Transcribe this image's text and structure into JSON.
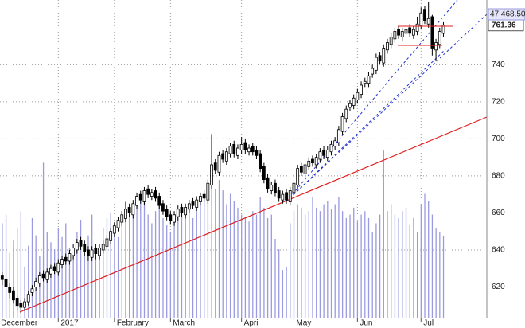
{
  "chart_data": {
    "type": "candlestick",
    "open": [
      626,
      624,
      620,
      618,
      614,
      611,
      609,
      612,
      617,
      620,
      622,
      627,
      624,
      627,
      631,
      628,
      632,
      636,
      634,
      637,
      640,
      645,
      643,
      640,
      636,
      641,
      637,
      640,
      642,
      645,
      649,
      652,
      655,
      657,
      663,
      659,
      664,
      670,
      666,
      673,
      669,
      672,
      669,
      665,
      662,
      659,
      655,
      658,
      663,
      659,
      662,
      666,
      663,
      666,
      670,
      667,
      675,
      687,
      682,
      692,
      688,
      692,
      697,
      691,
      694,
      698,
      693,
      696,
      694,
      692,
      685,
      679,
      672,
      676,
      672,
      667,
      671,
      666,
      671,
      675,
      685,
      681,
      685,
      689,
      686,
      689,
      694,
      690,
      693,
      696,
      698,
      704,
      711,
      717,
      718,
      721,
      724,
      730,
      730,
      735,
      737,
      745,
      741,
      748,
      751,
      754,
      759,
      755,
      757,
      760,
      756,
      758,
      761,
      770,
      762,
      766,
      748,
      751,
      757
    ],
    "high": [
      628,
      626,
      622,
      620,
      616,
      613,
      614,
      618,
      621,
      625,
      628,
      629,
      630,
      632,
      633,
      635,
      637,
      638,
      640,
      643,
      646,
      647,
      645,
      642,
      642,
      643,
      643,
      645,
      648,
      652,
      655,
      658,
      661,
      666,
      665,
      667,
      671,
      672,
      674,
      675,
      673,
      674,
      671,
      667,
      664,
      661,
      661,
      664,
      665,
      665,
      667,
      668,
      669,
      671,
      672,
      678,
      702,
      689,
      693,
      694,
      695,
      698,
      699,
      697,
      701,
      700,
      697,
      698,
      696,
      694,
      687,
      681,
      677,
      678,
      674,
      672,
      673,
      674,
      678,
      686,
      687,
      688,
      690,
      691,
      692,
      695,
      696,
      696,
      699,
      701,
      707,
      714,
      718,
      721,
      724,
      727,
      731,
      733,
      736,
      740,
      746,
      747,
      751,
      754,
      757,
      760,
      761,
      760,
      762,
      762,
      761,
      766,
      771,
      772,
      774,
      767,
      754,
      760,
      763
    ],
    "low": [
      621,
      617,
      614,
      611,
      607,
      606,
      607,
      610,
      615,
      618,
      620,
      623,
      622,
      625,
      627,
      626,
      630,
      632,
      632,
      635,
      638,
      640,
      637,
      634,
      634,
      635,
      635,
      638,
      640,
      643,
      647,
      650,
      653,
      655,
      658,
      657,
      662,
      665,
      664,
      668,
      667,
      666,
      662,
      659,
      656,
      654,
      653,
      656,
      658,
      657,
      660,
      662,
      661,
      664,
      666,
      665,
      673,
      681,
      680,
      687,
      686,
      690,
      690,
      689,
      692,
      692,
      691,
      691,
      689,
      682,
      676,
      671,
      670,
      669,
      666,
      665,
      665,
      664,
      669,
      673,
      680,
      679,
      683,
      685,
      684,
      687,
      689,
      688,
      691,
      694,
      696,
      702,
      709,
      715,
      716,
      719,
      722,
      728,
      728,
      733,
      735,
      740,
      739,
      746,
      749,
      752,
      754,
      753,
      755,
      755,
      754,
      756,
      759,
      762,
      760,
      745,
      742,
      749,
      755
    ],
    "close": [
      624,
      620,
      617,
      613,
      610,
      609,
      612,
      616,
      619,
      623,
      626,
      625,
      628,
      630,
      629,
      633,
      635,
      634,
      638,
      641,
      644,
      642,
      639,
      637,
      640,
      638,
      641,
      643,
      646,
      650,
      653,
      656,
      659,
      662,
      660,
      665,
      669,
      667,
      672,
      670,
      671,
      668,
      664,
      661,
      658,
      656,
      659,
      662,
      660,
      663,
      665,
      664,
      667,
      669,
      668,
      676,
      686,
      683,
      691,
      689,
      693,
      696,
      692,
      695,
      697,
      694,
      695,
      693,
      691,
      684,
      678,
      673,
      675,
      671,
      668,
      670,
      667,
      672,
      676,
      684,
      682,
      686,
      688,
      687,
      690,
      693,
      691,
      694,
      697,
      699,
      705,
      712,
      716,
      719,
      722,
      725,
      729,
      731,
      734,
      738,
      744,
      742,
      749,
      752,
      755,
      758,
      756,
      758,
      759,
      757,
      759,
      762,
      768,
      764,
      765,
      749,
      752,
      758,
      761.36
    ],
    "volume": {
      "color": "#9a9ae0",
      "axis": "y2",
      "values": [
        55000,
        60000,
        38000,
        45000,
        52000,
        62000,
        30000,
        42000,
        58000,
        48000,
        36000,
        90000,
        50000,
        44000,
        40000,
        52000,
        47000,
        55000,
        41000,
        38000,
        50000,
        57000,
        45000,
        48000,
        60000,
        43000,
        40000,
        52000,
        58000,
        61000,
        55000,
        47000,
        62000,
        58000,
        60000,
        64000,
        70000,
        72000,
        68000,
        60000,
        55000,
        62000,
        70000,
        58000,
        54000,
        50000,
        57000,
        62000,
        66000,
        60000,
        64000,
        58000,
        62000,
        66000,
        70000,
        78000,
        107000,
        75000,
        80000,
        74000,
        66000,
        72000,
        68000,
        64000,
        60000,
        58000,
        56000,
        62000,
        60000,
        70000,
        64000,
        58000,
        60000,
        46000,
        40000,
        28000,
        30000,
        55000,
        62000,
        66000,
        64000,
        60000,
        62000,
        70000,
        64000,
        62000,
        66000,
        68000,
        63000,
        66000,
        70000,
        62000,
        58000,
        60000,
        64000,
        56000,
        60000,
        62000,
        58000,
        50000,
        55000,
        60000,
        97000,
        62000,
        66000,
        60000,
        58000,
        62000,
        64000,
        54000,
        58000,
        50000,
        66000,
        72000,
        68000,
        60000,
        52000,
        50000,
        47468.5
      ]
    },
    "last_volume_label": "47,468.50",
    "last_price_label": "761.36",
    "xlim": [
      -0.6,
      129.6
    ],
    "xticks": [
      {
        "value": -1,
        "label": "December"
      },
      {
        "value": 15,
        "label": "2017"
      },
      {
        "value": 30,
        "label": "February"
      },
      {
        "value": 45,
        "label": "March"
      },
      {
        "value": 64,
        "label": "April"
      },
      {
        "value": 78,
        "label": "May"
      },
      {
        "value": 95,
        "label": "Jun"
      },
      {
        "value": 112,
        "label": "Jul"
      }
    ],
    "ylim": [
      603,
      775
    ],
    "yticks": [
      620,
      640,
      660,
      680,
      700,
      720,
      740
    ],
    "y2lim": [
      0,
      184000
    ],
    "grid": true
  }
}
